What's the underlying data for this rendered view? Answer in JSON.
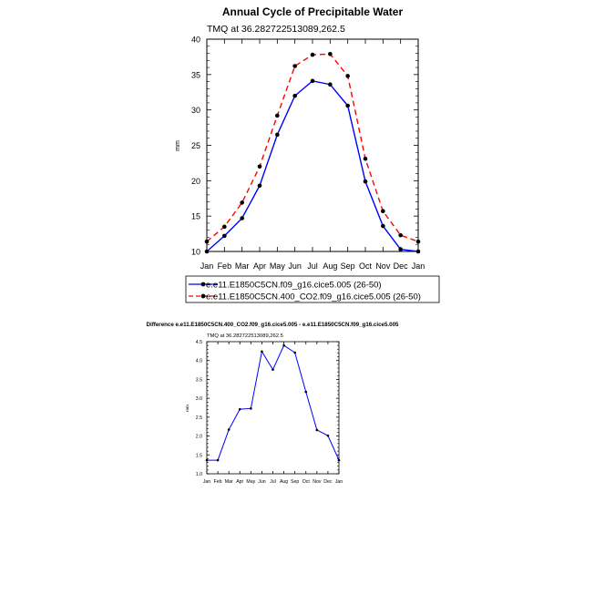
{
  "chart_data": [
    {
      "type": "line",
      "title": "Annual Cycle of Precipitable Water",
      "subtitle": "TMQ at 36.282722513089,262.5",
      "ylabel": "mm",
      "categories": [
        "Jan",
        "Feb",
        "Mar",
        "Apr",
        "May",
        "Jun",
        "Jul",
        "Aug",
        "Sep",
        "Oct",
        "Nov",
        "Dec",
        "Jan"
      ],
      "ylim": [
        10,
        40
      ],
      "yticks": [
        10,
        15,
        20,
        25,
        30,
        35,
        40
      ],
      "series": [
        {
          "name": "e.e11.E1850C5CN.f09_g16.cice5.005 (26-50)",
          "color": "#0000ff",
          "style": "solid",
          "values": [
            10.0,
            12.2,
            14.7,
            19.3,
            26.5,
            32.0,
            34.1,
            33.6,
            30.6,
            19.9,
            13.6,
            10.3,
            10.0
          ]
        },
        {
          "name": "e.e11.E1850C5CN.400_CO2.f09_g16.cice5.005 (26-50)",
          "color": "#ff0000",
          "style": "dashed",
          "values": [
            11.4,
            13.5,
            16.9,
            22.0,
            29.2,
            36.2,
            37.8,
            37.9,
            34.8,
            23.1,
            15.7,
            12.3,
            11.4
          ]
        }
      ]
    },
    {
      "type": "line",
      "title": "Difference e.e11.E1850C5CN.400_CO2.f09_g16.cice5.005 - e.e11.E1850C5CN.f09_g16.cice5.005",
      "subtitle": "TMQ at 36.282722513089,262.5",
      "ylabel": "mm",
      "categories": [
        "Jan",
        "Feb",
        "Mar",
        "Apr",
        "May",
        "Jun",
        "Jul",
        "Aug",
        "Sep",
        "Oct",
        "Nov",
        "Dec",
        "Jan"
      ],
      "ylim": [
        1.0,
        4.5
      ],
      "yticks": [
        "1.0",
        "1.5",
        "2.0",
        "2.5",
        "3.0",
        "3.5",
        "4.0",
        "4.5"
      ],
      "series": [
        {
          "name": "",
          "color": "#0000ff",
          "style": "solid",
          "values": [
            1.36,
            1.36,
            2.17,
            2.71,
            2.73,
            4.24,
            3.76,
            4.4,
            4.21,
            3.17,
            2.16,
            2.01,
            1.36
          ]
        }
      ]
    }
  ]
}
